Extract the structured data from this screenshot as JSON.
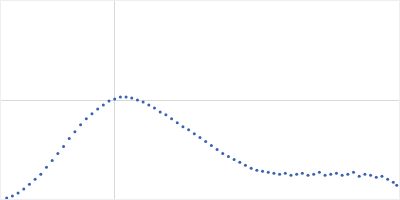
{
  "chart_data": {
    "type": "scatter",
    "color": "#3a62b0",
    "marker": "circle",
    "x": [
      0.05,
      0.1,
      0.15,
      0.2,
      0.25,
      0.3,
      0.35,
      0.4,
      0.45,
      0.5,
      0.55,
      0.6,
      0.65,
      0.7,
      0.75,
      0.8,
      0.85,
      0.9,
      0.95,
      1.0,
      1.05,
      1.1,
      1.15,
      1.2,
      1.25,
      1.3,
      1.35,
      1.4,
      1.45,
      1.5,
      1.55,
      1.6,
      1.65,
      1.7,
      1.75,
      1.8,
      1.85,
      1.9,
      1.95,
      2.0,
      2.05,
      2.1,
      2.15,
      2.2,
      2.25,
      2.3,
      2.35,
      2.4,
      2.45,
      2.5,
      2.55,
      2.6,
      2.65,
      2.7,
      2.75,
      2.8,
      2.85,
      2.9,
      2.95,
      3.0,
      3.05,
      3.1,
      3.15,
      3.2,
      3.25,
      3.3,
      3.35,
      3.4,
      3.45,
      3.48
    ],
    "values": [
      0.01,
      0.03,
      0.06,
      0.1,
      0.15,
      0.2,
      0.25,
      0.32,
      0.39,
      0.46,
      0.53,
      0.61,
      0.68,
      0.75,
      0.81,
      0.86,
      0.91,
      0.95,
      0.99,
      1.01,
      1.03,
      1.03,
      1.02,
      1.0,
      0.98,
      0.95,
      0.92,
      0.88,
      0.85,
      0.81,
      0.77,
      0.73,
      0.7,
      0.66,
      0.62,
      0.58,
      0.54,
      0.5,
      0.46,
      0.43,
      0.4,
      0.37,
      0.34,
      0.31,
      0.29,
      0.28,
      0.27,
      0.26,
      0.25,
      0.26,
      0.24,
      0.25,
      0.26,
      0.24,
      0.25,
      0.27,
      0.24,
      0.25,
      0.26,
      0.24,
      0.25,
      0.27,
      0.23,
      0.25,
      0.24,
      0.22,
      0.23,
      0.2,
      0.17,
      0.14
    ],
    "xlim": [
      0,
      3.5
    ],
    "ylim": [
      0,
      2
    ],
    "xticks": [
      1
    ],
    "yticks": [
      1
    ],
    "grid": true,
    "tick_labels": false
  }
}
